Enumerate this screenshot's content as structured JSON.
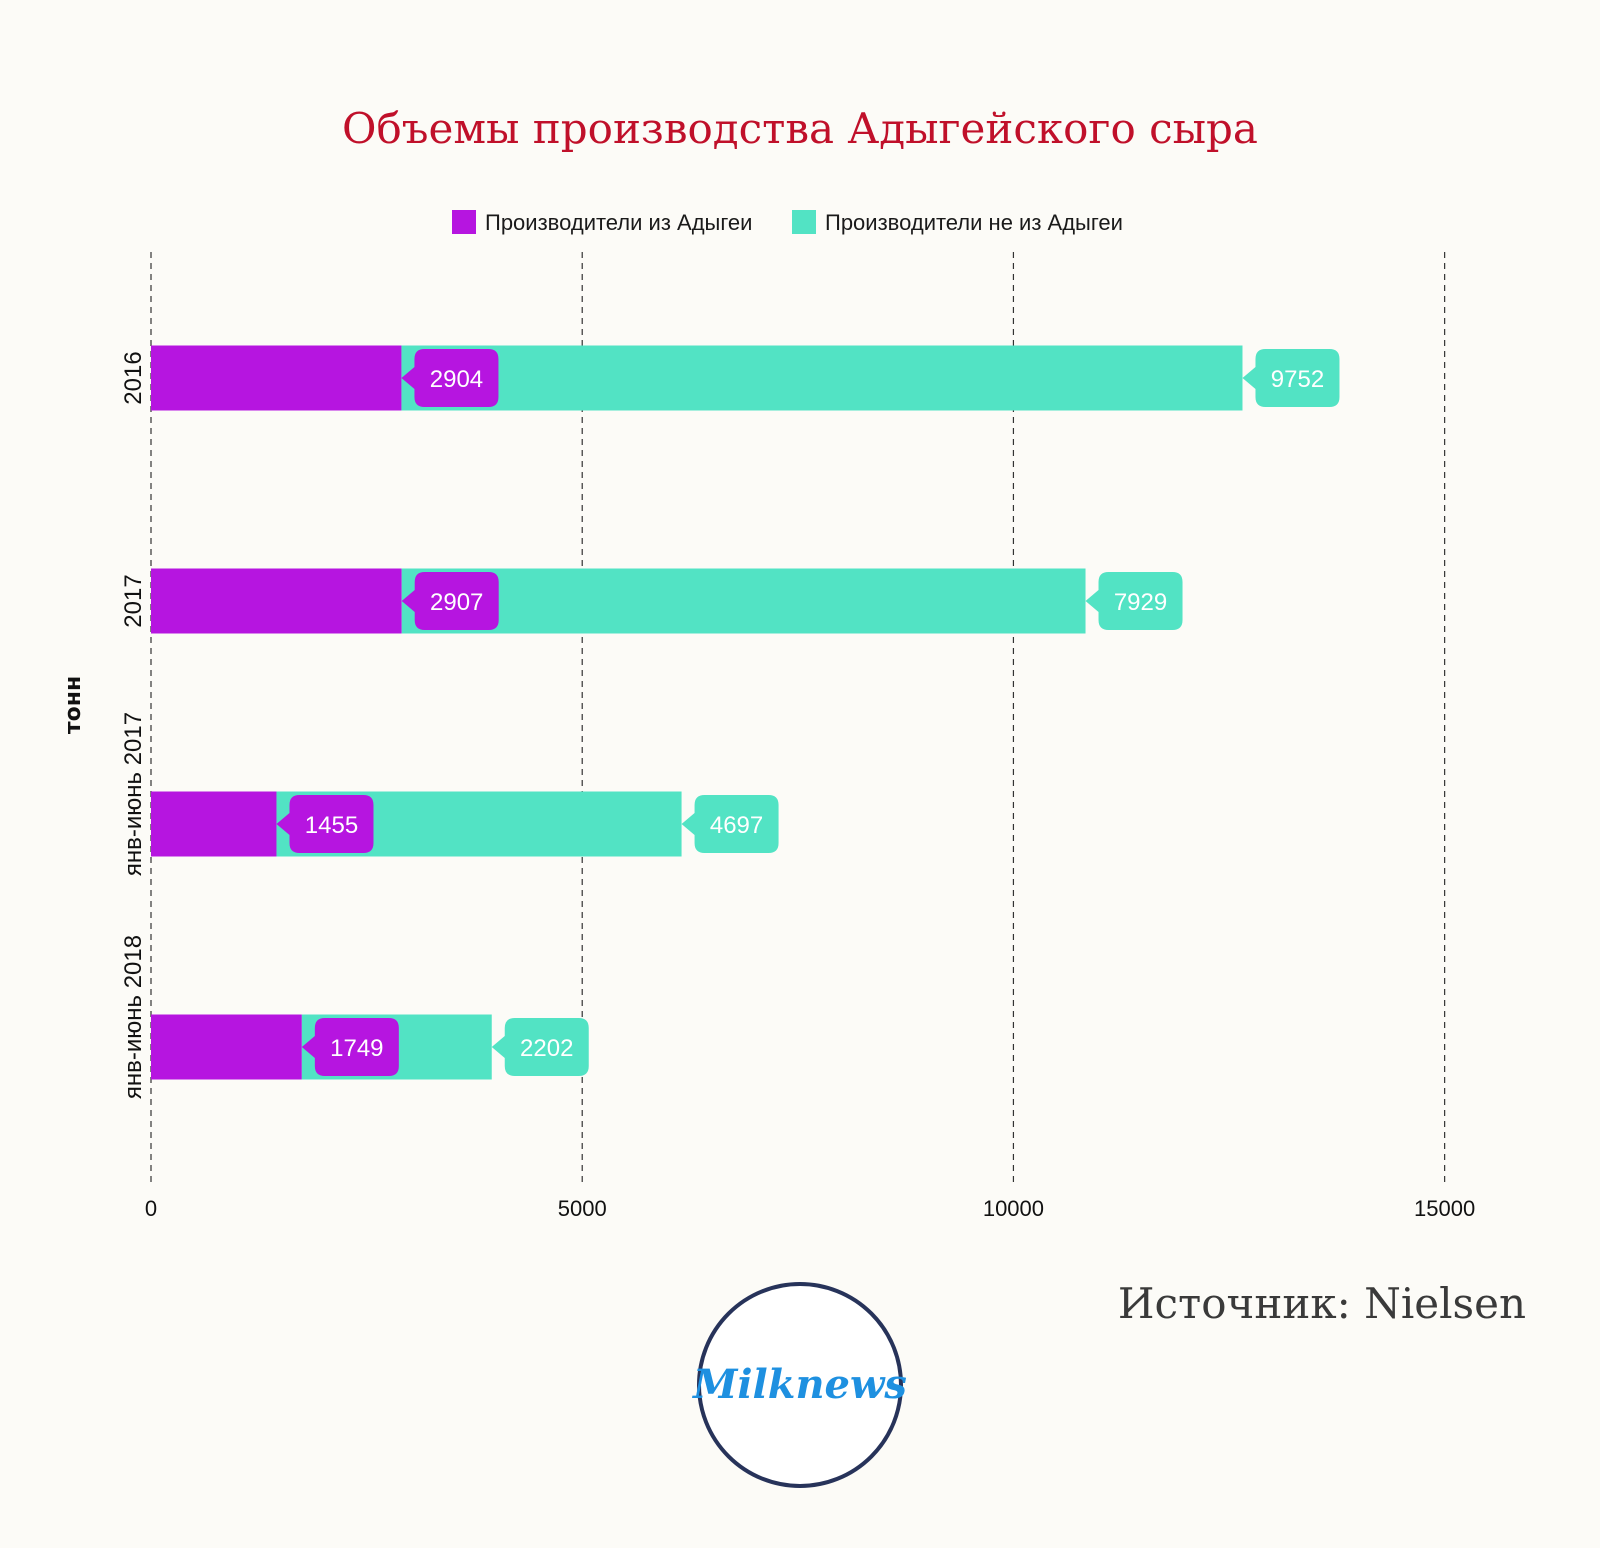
{
  "chart_data": {
    "type": "bar",
    "orientation": "horizontal",
    "stacked": true,
    "title": "Объемы производства Адыгейского сыра",
    "ylabel": "тонн",
    "categories": [
      "2016",
      "2017",
      "янв-июнь 2017",
      "янв-июнь 2018"
    ],
    "series": [
      {
        "name": "Производители из Адыгеи",
        "color": "#b615e0",
        "values": [
          2904,
          2907,
          1455,
          1749
        ]
      },
      {
        "name": "Производители не из Адыгеи",
        "color": "#52e3c4",
        "values": [
          9752,
          7929,
          4697,
          2202
        ]
      }
    ],
    "xlim": [
      0,
      16500
    ],
    "xticks": [
      0,
      5000,
      10000,
      15000
    ],
    "grid": true,
    "legend": "top-center"
  },
  "source": "Источник: Nielsen",
  "logo": {
    "text": "Milknews"
  }
}
